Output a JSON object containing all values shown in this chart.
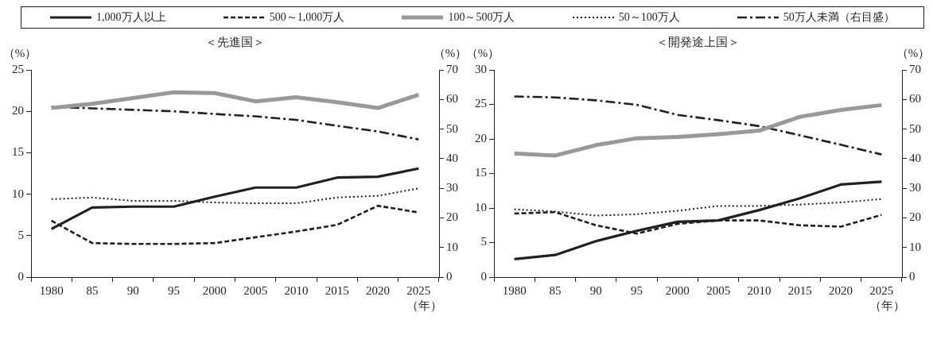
{
  "chart_data": [
    {
      "type": "line",
      "title": "＜先進国＞",
      "ylabel": "（%）",
      "y2label": "（%）",
      "xlabel": "（年）",
      "categories": [
        "1980",
        "85",
        "90",
        "95",
        "2000",
        "2005",
        "2010",
        "2015",
        "2020",
        "2025"
      ],
      "ylim": [
        0,
        25
      ],
      "yticks": [
        0,
        5,
        10,
        15,
        20,
        25
      ],
      "y2lim": [
        0,
        70
      ],
      "y2ticks": [
        0,
        10,
        20,
        30,
        40,
        50,
        60,
        70
      ],
      "grid": false,
      "legend": "top",
      "marker": "none",
      "series": [
        {
          "name": "1,000万人以上",
          "color": "#231f20",
          "line_style": "solid",
          "values": [
            5.8,
            8.4,
            8.5,
            8.5,
            9.7,
            10.8,
            10.8,
            12.0,
            12.1,
            13.1
          ]
        },
        {
          "name": "500～1,000万人",
          "color": "#231f20",
          "line_style": "dashed",
          "values": [
            6.8,
            4.1,
            4.0,
            4.0,
            4.1,
            4.8,
            5.5,
            6.3,
            8.6,
            7.8
          ]
        },
        {
          "name": "100～500万人",
          "color": "#999999",
          "line_style": "solid",
          "values": [
            20.4,
            20.9,
            21.6,
            22.3,
            22.2,
            21.2,
            21.7,
            21.1,
            20.4,
            22.0
          ]
        },
        {
          "name": "50～100万人",
          "color": "#231f20",
          "line_style": "dotted",
          "values": [
            9.4,
            9.6,
            9.2,
            9.2,
            9.0,
            8.9,
            8.9,
            9.6,
            9.8,
            10.7
          ]
        },
        {
          "name": "50万人未満（右目盛）",
          "color": "#231f20",
          "line_style": "dashdot",
          "axis": "y2",
          "values": [
            57.5,
            57.0,
            56.5,
            56.0,
            55.1,
            54.3,
            53.1,
            51.1,
            49.2,
            46.5
          ]
        }
      ]
    },
    {
      "type": "line",
      "title": "＜開発途上国＞",
      "ylabel": "（%）",
      "y2label": "（%）",
      "xlabel": "（年）",
      "categories": [
        "1980",
        "85",
        "90",
        "95",
        "2000",
        "2005",
        "2010",
        "2015",
        "2020",
        "2025"
      ],
      "ylim": [
        0,
        30
      ],
      "yticks": [
        0,
        5,
        10,
        15,
        20,
        25,
        30
      ],
      "y2lim": [
        0,
        70
      ],
      "y2ticks": [
        0,
        10,
        20,
        30,
        40,
        50,
        60,
        70
      ],
      "grid": false,
      "marker": "none",
      "series": [
        {
          "color": "#231f20",
          "line_style": "solid",
          "values": [
            2.6,
            3.2,
            5.2,
            6.7,
            8.0,
            8.2,
            9.7,
            11.4,
            13.4,
            13.8
          ]
        },
        {
          "color": "#231f20",
          "line_style": "dashed",
          "values": [
            9.2,
            9.4,
            7.5,
            6.3,
            7.7,
            8.2,
            8.2,
            7.5,
            7.3,
            9.0
          ]
        },
        {
          "color": "#999999",
          "line_style": "solid",
          "values": [
            17.9,
            17.6,
            19.1,
            20.1,
            20.3,
            20.7,
            21.2,
            23.2,
            24.2,
            24.9
          ]
        },
        {
          "color": "#231f20",
          "line_style": "dotted",
          "values": [
            9.8,
            9.5,
            8.9,
            9.1,
            9.6,
            10.3,
            10.3,
            10.5,
            10.8,
            11.3
          ]
        },
        {
          "color": "#231f20",
          "line_style": "dashdot",
          "axis": "y2",
          "values": [
            61.0,
            60.7,
            59.7,
            58.2,
            54.8,
            53.0,
            51.0,
            47.9,
            44.7,
            41.4
          ]
        }
      ]
    }
  ]
}
